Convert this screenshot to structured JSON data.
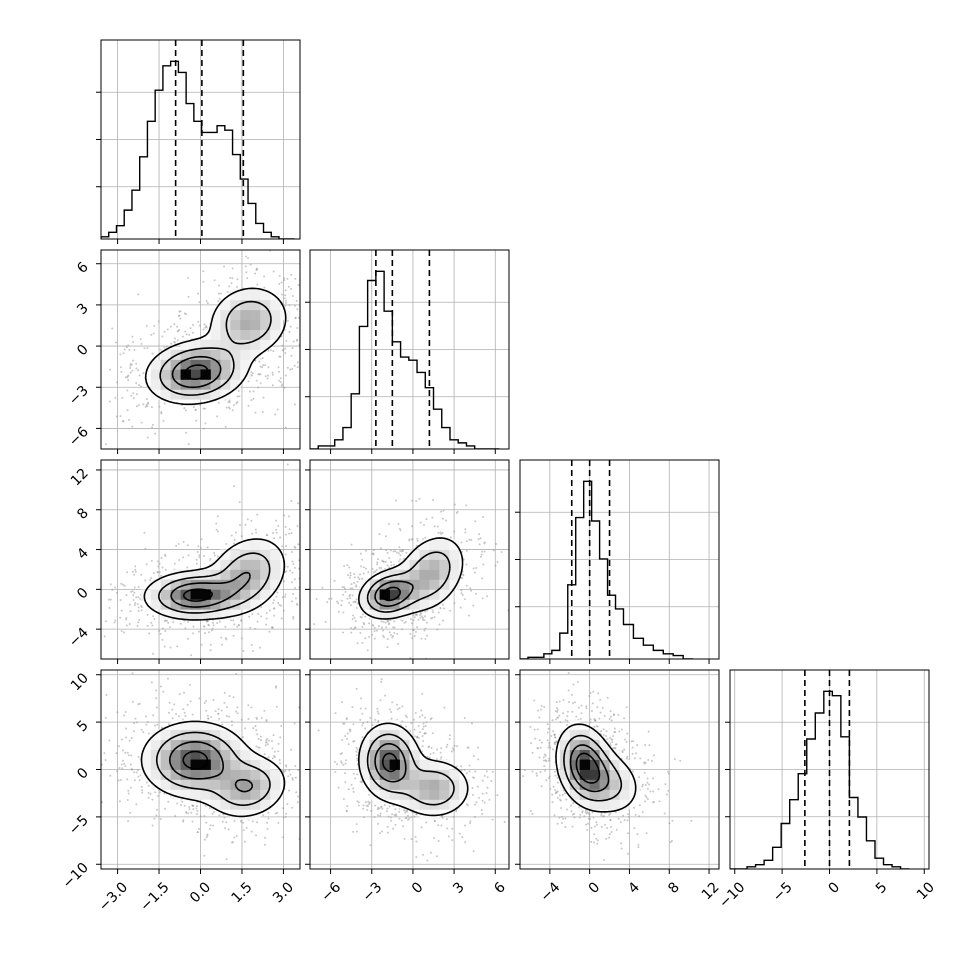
{
  "chart_data": {
    "type": "corner",
    "parameters": [
      {
        "ticks": [
          -3.0,
          -1.5,
          0.0,
          1.5,
          3.0
        ],
        "tick_labels": [
          "−3.0",
          "−1.5",
          "0.0",
          "1.5",
          "3.0"
        ],
        "range": [
          -3.6,
          3.6
        ]
      },
      {
        "ticks": [
          -6,
          -3,
          0,
          3,
          6
        ],
        "tick_labels": [
          "−6",
          "−3",
          "0",
          "3",
          "6"
        ],
        "range": [
          -7.5,
          7.0
        ]
      },
      {
        "ticks": [
          -4,
          0,
          4,
          8,
          12
        ],
        "tick_labels": [
          "−4",
          "0",
          "4",
          "8",
          "12"
        ],
        "range": [
          -7.0,
          13.0
        ]
      },
      {
        "ticks": [
          -10,
          -5,
          0,
          5,
          10
        ],
        "tick_labels": [
          "−10",
          "−5",
          "0",
          "5",
          "10"
        ],
        "range": [
          -10.5,
          10.5
        ]
      }
    ],
    "histograms": [
      {
        "param": 0,
        "bins": [
          -3.6,
          -3.32,
          -3.04,
          -2.76,
          -2.48,
          -2.2,
          -1.92,
          -1.64,
          -1.36,
          -1.08,
          -0.8,
          -0.52,
          -0.24,
          0.04,
          0.32,
          0.6,
          0.88,
          1.16,
          1.44,
          1.72,
          2.0,
          2.28,
          2.56,
          2.84,
          3.12,
          3.4
        ],
        "counts": [
          1,
          3,
          6,
          13,
          22,
          37,
          53,
          67,
          78,
          80,
          75,
          61,
          53,
          48,
          48,
          51,
          49,
          38,
          27,
          16,
          7,
          3,
          1,
          0,
          0
        ],
        "quantiles": [
          -0.9,
          0.05,
          1.55
        ]
      },
      {
        "param": 1,
        "bins": [
          -7.5,
          -6.9,
          -6.3,
          -5.7,
          -5.1,
          -4.5,
          -3.9,
          -3.3,
          -2.7,
          -2.1,
          -1.5,
          -0.9,
          -0.3,
          0.3,
          0.9,
          1.5,
          2.1,
          2.7,
          3.3,
          3.9,
          4.5,
          5.1,
          5.7,
          6.3
        ],
        "counts": [
          0,
          1,
          1,
          3,
          7,
          18,
          40,
          55,
          58,
          45,
          35,
          30,
          29,
          25,
          20,
          13,
          7,
          3,
          2,
          1,
          0,
          0,
          0
        ],
        "quantiles": [
          -2.7,
          -1.5,
          1.2
        ]
      },
      {
        "param": 2,
        "bins": [
          -7.0,
          -6.2,
          -5.4,
          -4.6,
          -3.8,
          -3.0,
          -2.2,
          -1.4,
          -0.6,
          0.2,
          1.0,
          1.8,
          2.6,
          3.4,
          4.4,
          5.4,
          6.4,
          7.4,
          8.4,
          9.4,
          10.4
        ],
        "counts": [
          0,
          1,
          1,
          3,
          5,
          15,
          43,
          82,
          103,
          80,
          58,
          37,
          29,
          20,
          12,
          8,
          5,
          3,
          2,
          0
        ],
        "quantiles": [
          -1.8,
          0.0,
          2.0
        ]
      },
      {
        "param": 3,
        "bins": [
          -10.5,
          -9.6,
          -8.7,
          -7.8,
          -6.9,
          -6.0,
          -5.1,
          -4.2,
          -3.3,
          -2.4,
          -1.5,
          -0.6,
          0.3,
          1.2,
          2.1,
          3.0,
          3.9,
          4.8,
          5.7,
          6.6,
          7.5,
          8.4
        ],
        "counts": [
          0,
          0,
          1,
          2,
          4,
          10,
          21,
          32,
          44,
          60,
          72,
          82,
          80,
          61,
          33,
          24,
          13,
          5,
          2,
          1,
          0
        ],
        "quantiles": [
          -2.6,
          0.0,
          2.1
        ]
      }
    ],
    "pairs": [
      {
        "x": 0,
        "y": 1,
        "modes": [
          {
            "cx": -0.15,
            "cy": -1.9,
            "sx": 0.9,
            "sy": 1.15,
            "rho": 0.15,
            "weight": 0.62
          },
          {
            "cx": 1.75,
            "cy": 1.8,
            "sx": 0.75,
            "sy": 1.35,
            "rho": 0.1,
            "weight": 0.38
          }
        ],
        "hotspots": [
          [
            -0.4,
            -1.9
          ],
          [
            0.05,
            -1.8
          ]
        ]
      },
      {
        "x": 0,
        "y": 2,
        "modes": [
          {
            "cx": -0.2,
            "cy": -0.6,
            "sx": 0.9,
            "sy": 1.2,
            "rho": 0.05,
            "weight": 0.62
          },
          {
            "cx": 1.7,
            "cy": 1.5,
            "sx": 0.75,
            "sy": 2.0,
            "rho": 0.25,
            "weight": 0.38
          }
        ],
        "hotspots": [
          [
            -0.25,
            -0.6
          ],
          [
            0.15,
            -0.5
          ]
        ]
      },
      {
        "x": 1,
        "y": 2,
        "modes": [
          {
            "cx": -1.7,
            "cy": -0.5,
            "sx": 1.1,
            "sy": 1.2,
            "rho": 0.2,
            "weight": 0.62
          },
          {
            "cx": 1.3,
            "cy": 1.6,
            "sx": 1.3,
            "sy": 2.0,
            "rho": 0.3,
            "weight": 0.38
          }
        ],
        "hotspots": [
          [
            -1.8,
            -0.6
          ]
        ]
      },
      {
        "x": 0,
        "y": 3,
        "modes": [
          {
            "cx": -0.2,
            "cy": 1.0,
            "sx": 0.95,
            "sy": 2.0,
            "rho": 0.0,
            "weight": 0.62
          },
          {
            "cx": 1.7,
            "cy": -1.9,
            "sx": 0.75,
            "sy": 1.7,
            "rho": 0.15,
            "weight": 0.38
          }
        ],
        "hotspots": [
          [
            -0.35,
            0.5
          ],
          [
            0.15,
            0.4
          ]
        ]
      },
      {
        "x": 1,
        "y": 3,
        "modes": [
          {
            "cx": -1.7,
            "cy": 0.8,
            "sx": 1.1,
            "sy": 2.0,
            "rho": -0.05,
            "weight": 0.62
          },
          {
            "cx": 1.5,
            "cy": -2.0,
            "sx": 1.4,
            "sy": 1.6,
            "rho": 0.0,
            "weight": 0.38
          }
        ],
        "hotspots": [
          [
            -1.7,
            0.6
          ]
        ]
      },
      {
        "x": 2,
        "y": 3,
        "modes": [
          {
            "cx": -0.5,
            "cy": 0.5,
            "sx": 1.4,
            "sy": 2.1,
            "rho": -0.2,
            "weight": 0.7
          },
          {
            "cx": 1.8,
            "cy": -1.4,
            "sx": 1.8,
            "sy": 1.8,
            "rho": -0.2,
            "weight": 0.3
          }
        ],
        "hotspots": [
          [
            -0.5,
            0.5
          ]
        ]
      }
    ],
    "grid": true
  }
}
